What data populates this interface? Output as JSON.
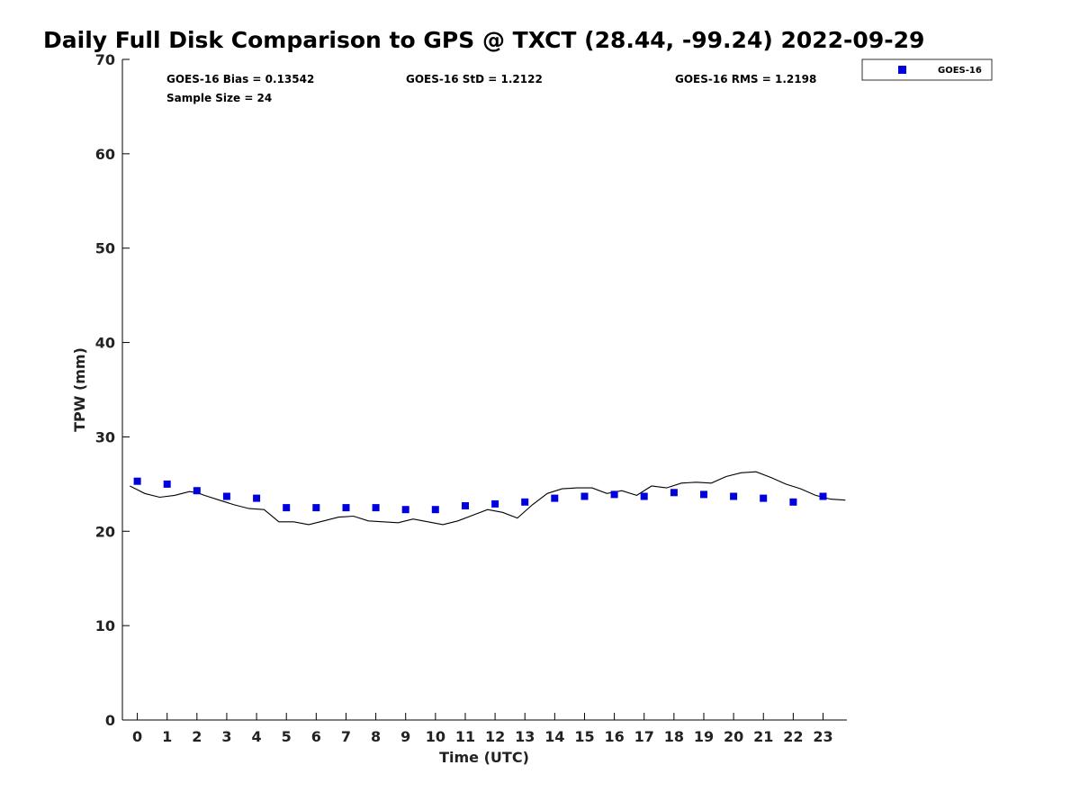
{
  "chart_data": {
    "type": "scatter",
    "title": "Daily Full Disk Comparison to GPS @ TXCT (28.44, -99.24) 2022-09-29",
    "xlabel": "Time (UTC)",
    "ylabel": "TPW (mm)",
    "xlim": [
      -0.5,
      23.8
    ],
    "ylim": [
      0,
      70
    ],
    "x_ticks": [
      "0",
      "1",
      "2",
      "3",
      "4",
      "5",
      "6",
      "7",
      "8",
      "9",
      "10",
      "11",
      "12",
      "13",
      "14",
      "15",
      "16",
      "17",
      "18",
      "19",
      "20",
      "21",
      "22",
      "23"
    ],
    "y_ticks": [
      "0",
      "10",
      "20",
      "30",
      "40",
      "50",
      "60",
      "70"
    ],
    "grid": false,
    "legend": {
      "placement": "top-right",
      "entries": [
        "GOES-16"
      ]
    },
    "stats": [
      "GOES-16 Bias = 0.13542",
      "GOES-16 StD = 1.2122",
      "GOES-16 RMS = 1.2198",
      "Sample Size = 24"
    ],
    "series": [
      {
        "name": "GOES-16",
        "style": "marker",
        "color": "#0000dd",
        "x": [
          0,
          1,
          2,
          3,
          4,
          5,
          6,
          7,
          8,
          9,
          10,
          11,
          12,
          13,
          14,
          15,
          16,
          17,
          18,
          19,
          20,
          21,
          22,
          23
        ],
        "y": [
          25.3,
          25.0,
          24.3,
          23.7,
          23.5,
          22.5,
          22.5,
          22.5,
          22.5,
          22.3,
          22.3,
          22.7,
          22.9,
          23.1,
          23.5,
          23.7,
          23.9,
          23.7,
          24.1,
          23.9,
          23.7,
          23.5,
          23.1,
          23.7
        ]
      },
      {
        "style": "line",
        "color": "#000000",
        "x": [
          -0.25,
          0.0,
          0.25,
          0.75,
          1.25,
          1.75,
          2.0,
          2.25,
          2.75,
          3.25,
          3.75,
          4.25,
          4.75,
          5.25,
          5.75,
          6.25,
          6.75,
          7.25,
          7.75,
          8.25,
          8.75,
          9.25,
          9.75,
          10.25,
          10.75,
          11.25,
          11.75,
          12.25,
          12.75,
          13.25,
          13.75,
          14.25,
          14.75,
          15.25,
          15.75,
          16.25,
          16.75,
          17.25,
          17.75,
          18.25,
          18.75,
          19.25,
          19.75,
          20.25,
          20.75,
          21.25,
          21.75,
          22.25,
          22.75,
          23.25,
          23.75
        ],
        "y": [
          24.8,
          24.4,
          24.0,
          23.6,
          23.8,
          24.2,
          24.1,
          23.8,
          23.3,
          22.8,
          22.4,
          22.3,
          21.0,
          21.0,
          20.7,
          21.1,
          21.5,
          21.6,
          21.1,
          21.0,
          20.9,
          21.3,
          21.0,
          20.7,
          21.1,
          21.7,
          22.3,
          22.0,
          21.4,
          22.8,
          24.0,
          24.5,
          24.6,
          24.6,
          24.0,
          24.3,
          23.8,
          24.8,
          24.6,
          25.1,
          25.2,
          25.1,
          25.8,
          26.2,
          26.3,
          25.7,
          25.0,
          24.5,
          23.8,
          23.4,
          23.3
        ]
      }
    ]
  }
}
